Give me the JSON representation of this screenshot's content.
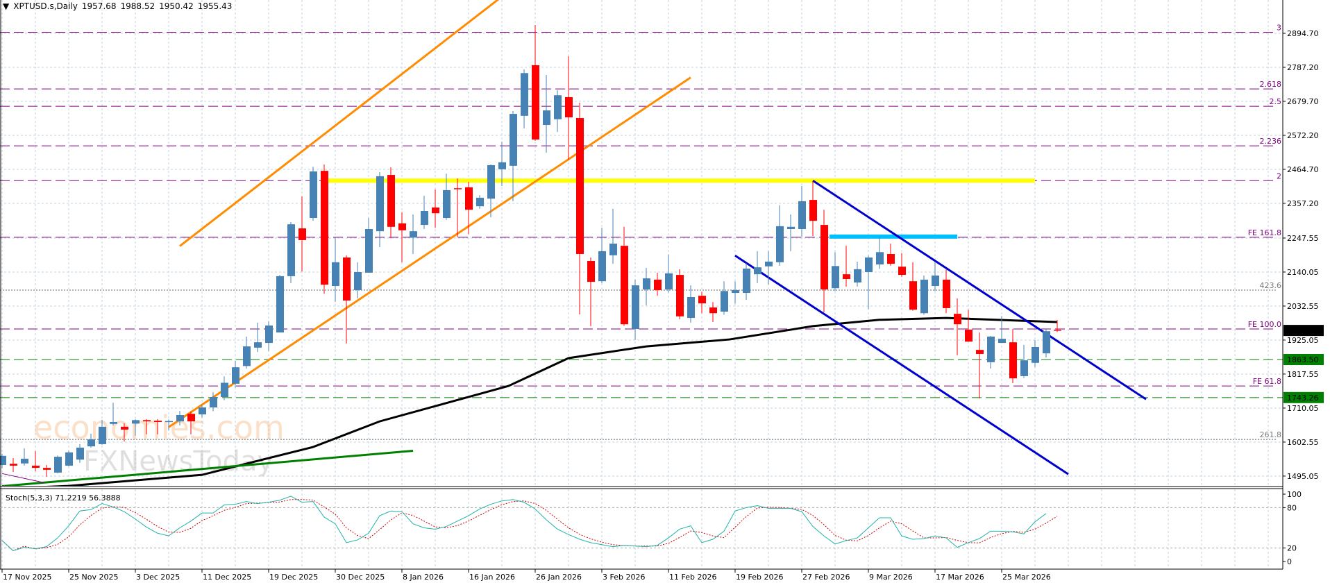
{
  "header": {
    "arrow_icon": "triangle-down-icon",
    "symbol": "XPTUSD.s,Daily",
    "open": "1957.68",
    "high": "1988.52",
    "low": "1950.42",
    "close": "1955.43"
  },
  "watermark": {
    "line1": "economies.com",
    "line2": "FXNewsToday"
  },
  "colors": {
    "bull": "#4682B4",
    "bear": "#FF0000",
    "grid": "#c0d4dc",
    "fib": "#800080",
    "support": "#008000",
    "ma": "#000000",
    "channel_up": "#FF8C00",
    "channel_down": "#0000CC",
    "resistance_yellow": "#FFFF00",
    "resistance_cyan": "#00BFFF",
    "stoch_main": "#20B2AA",
    "stoch_signal": "#CC0000"
  },
  "chart_data": {
    "type": "candlestick",
    "price_axis_labels": [
      "2894.70",
      "2787.20",
      "2679.70",
      "2572.20",
      "2464.70",
      "2357.20",
      "2247.55",
      "2140.05",
      "2032.55",
      "1925.05",
      "1817.55",
      "1710.05",
      "1602.55",
      "1495.05"
    ],
    "date_labels": [
      "17 Nov 2025",
      "25 Nov 2025",
      "3 Dec 2025",
      "11 Dec 2025",
      "19 Dec 2025",
      "30 Dec 2025",
      "8 Jan 2026",
      "16 Jan 2026",
      "26 Jan 2026",
      "3 Feb 2026",
      "11 Feb 2026",
      "19 Feb 2026",
      "27 Feb 2026",
      "9 Mar 2026",
      "17 Mar 2026",
      "25 Mar 2026"
    ],
    "ylim": [
      1450,
      2960
    ],
    "ohlc": [
      [
        1530,
        1565,
        1520,
        1559
      ],
      [
        1534,
        1552,
        1508,
        1528
      ],
      [
        1535,
        1583,
        1528,
        1550
      ],
      [
        1528,
        1574,
        1510,
        1521
      ],
      [
        1521,
        1530,
        1493,
        1515
      ],
      [
        1506,
        1560,
        1504,
        1556
      ],
      [
        1528,
        1575,
        1526,
        1570
      ],
      [
        1547,
        1596,
        1537,
        1585
      ],
      [
        1589,
        1629,
        1585,
        1611
      ],
      [
        1596,
        1673,
        1594,
        1651
      ],
      [
        1660,
        1727,
        1655,
        1666
      ],
      [
        1651,
        1662,
        1604,
        1642
      ],
      [
        1661,
        1675,
        1622,
        1672
      ],
      [
        1672,
        1675,
        1627,
        1668
      ],
      [
        1670,
        1675,
        1627,
        1666
      ],
      [
        1668,
        1674,
        1640,
        1669
      ],
      [
        1668,
        1701,
        1655,
        1688
      ],
      [
        1692,
        1699,
        1627,
        1668
      ],
      [
        1690,
        1720,
        1680,
        1712
      ],
      [
        1712,
        1760,
        1700,
        1745
      ],
      [
        1745,
        1810,
        1735,
        1790
      ],
      [
        1787,
        1860,
        1775,
        1839
      ],
      [
        1843,
        1936,
        1835,
        1905
      ],
      [
        1901,
        1980,
        1887,
        1918
      ],
      [
        1916,
        1984,
        1890,
        1971
      ],
      [
        1949,
        2131,
        1949,
        2127
      ],
      [
        2127,
        2298,
        2105,
        2291
      ],
      [
        2278,
        2379,
        2142,
        2241
      ],
      [
        2311,
        2473,
        2302,
        2458
      ],
      [
        2460,
        2480,
        2072,
        2100
      ],
      [
        2096,
        2250,
        2046,
        2171
      ],
      [
        2186,
        2193,
        1914,
        2050
      ],
      [
        2083,
        2171,
        2057,
        2140
      ],
      [
        2138,
        2311,
        2138,
        2276
      ],
      [
        2269,
        2456,
        2219,
        2443
      ],
      [
        2447,
        2471,
        2247,
        2283
      ],
      [
        2294,
        2329,
        2171,
        2272
      ],
      [
        2249,
        2322,
        2197,
        2269
      ],
      [
        2289,
        2381,
        2276,
        2333
      ],
      [
        2344,
        2401,
        2280,
        2326
      ],
      [
        2311,
        2451,
        2305,
        2399
      ],
      [
        2405,
        2436,
        2250,
        2403
      ],
      [
        2408,
        2425,
        2260,
        2337
      ],
      [
        2348,
        2383,
        2340,
        2375
      ],
      [
        2372,
        2480,
        2313,
        2478
      ],
      [
        2465,
        2552,
        2412,
        2487
      ],
      [
        2476,
        2649,
        2364,
        2640
      ],
      [
        2634,
        2781,
        2594,
        2769
      ],
      [
        2794,
        2921,
        2555,
        2559
      ],
      [
        2605,
        2763,
        2517,
        2651
      ],
      [
        2623,
        2715,
        2583,
        2699
      ],
      [
        2693,
        2822,
        2495,
        2629
      ],
      [
        2627,
        2675,
        2006,
        2197
      ],
      [
        2175,
        2186,
        1969,
        2109
      ],
      [
        2111,
        2280,
        2105,
        2206
      ],
      [
        2193,
        2340,
        2166,
        2230
      ],
      [
        2223,
        2283,
        1970,
        1975
      ],
      [
        1960,
        2116,
        1925,
        2098
      ],
      [
        2085,
        2153,
        2035,
        2120
      ],
      [
        2116,
        2138,
        2065,
        2083
      ],
      [
        2085,
        2195,
        2075,
        2136
      ],
      [
        2131,
        2149,
        1991,
        2000
      ],
      [
        1995,
        2098,
        1980,
        2061
      ],
      [
        2065,
        2078,
        2010,
        2041
      ],
      [
        2028,
        2045,
        1982,
        2010
      ],
      [
        2015,
        2111,
        2005,
        2080
      ],
      [
        2074,
        2111,
        2040,
        2083
      ],
      [
        2074,
        2168,
        2052,
        2151
      ],
      [
        2133,
        2206,
        2105,
        2155
      ],
      [
        2158,
        2206,
        2100,
        2173
      ],
      [
        2171,
        2351,
        2160,
        2285
      ],
      [
        2276,
        2322,
        2206,
        2283
      ],
      [
        2276,
        2412,
        2250,
        2364
      ],
      [
        2368,
        2429,
        2254,
        2302
      ],
      [
        2289,
        2337,
        2013,
        2085
      ],
      [
        2089,
        2203,
        2080,
        2159
      ],
      [
        2133,
        2223,
        2094,
        2118
      ],
      [
        2107,
        2173,
        2094,
        2149
      ],
      [
        2140,
        2192,
        2023,
        2186
      ],
      [
        2164,
        2250,
        2150,
        2203
      ],
      [
        2197,
        2230,
        2160,
        2166
      ],
      [
        2157,
        2200,
        2125,
        2131
      ],
      [
        2111,
        2171,
        2018,
        2021
      ],
      [
        2010,
        2129,
        2005,
        2116
      ],
      [
        2096,
        2173,
        2080,
        2129
      ],
      [
        2116,
        2148,
        2010,
        2026
      ],
      [
        2008,
        2057,
        1877,
        1975
      ],
      [
        1958,
        2021,
        1920,
        1920
      ],
      [
        1894,
        1949,
        1741,
        1881
      ],
      [
        1855,
        1938,
        1835,
        1936
      ],
      [
        1916,
        2001,
        1916,
        1929
      ],
      [
        1918,
        1960,
        1789,
        1804
      ],
      [
        1811,
        1910,
        1805,
        1861
      ],
      [
        1853,
        1925,
        1840,
        1903
      ],
      [
        1883,
        1960,
        1870,
        1953
      ],
      [
        1957.68,
        1988.52,
        1950.42,
        1955.43
      ]
    ],
    "moving_average": [
      [
        0,
        1455
      ],
      [
        6,
        1464
      ],
      [
        18,
        1499
      ],
      [
        28,
        1587
      ],
      [
        34,
        1668
      ],
      [
        45.6,
        1780
      ],
      [
        51,
        1868
      ],
      [
        58,
        1905
      ],
      [
        65.5,
        1927
      ],
      [
        73,
        1969
      ],
      [
        79,
        1989
      ],
      [
        85,
        1995
      ],
      [
        95,
        1982
      ]
    ],
    "fib_levels": [
      {
        "label": "3",
        "price": 2898,
        "style": "dash"
      },
      {
        "label": "2.618",
        "price": 2719,
        "style": "dash"
      },
      {
        "label": "2.5",
        "price": 2664,
        "style": "dash"
      },
      {
        "label": "2.236",
        "price": 2539,
        "style": "dash"
      },
      {
        "label": "2",
        "price": 2429,
        "style": "dash"
      },
      {
        "label": "FE 161.8",
        "price": 2250,
        "style": "dash"
      },
      {
        "label": "423.6",
        "price": 2083,
        "style": "dot"
      },
      {
        "label": "FE 100.0",
        "price": 1960,
        "style": "dash"
      },
      {
        "label": "FE 61.8",
        "price": 1780,
        "style": "dash"
      },
      {
        "label": "261.8",
        "price": 1611,
        "style": "dot"
      }
    ],
    "support_levels": [
      {
        "label": "1863.50",
        "price": 1863.5
      },
      {
        "label": "1743.26",
        "price": 1743.26
      }
    ],
    "current_price_label": "1955.43",
    "trendlines": [
      {
        "name": "ascending-channel-upper",
        "color": "channel_up",
        "from": [
          16,
          2222
        ],
        "to": [
          46,
          3038
        ]
      },
      {
        "name": "ascending-channel-lower",
        "color": "channel_up",
        "from": [
          15,
          1650
        ],
        "to": [
          62,
          2755
        ]
      },
      {
        "name": "descending-channel-upper",
        "color": "channel_down",
        "from": [
          73,
          2429
        ],
        "to": [
          103,
          1738
        ]
      },
      {
        "name": "descending-channel-lower",
        "color": "channel_down",
        "from": [
          66,
          2192
        ],
        "to": [
          96,
          1501
        ]
      },
      {
        "name": "long-term-support",
        "color": "support",
        "from": [
          0,
          1463
        ],
        "to": [
          37,
          1575
        ]
      },
      {
        "name": "short-purple-line",
        "color": "fib",
        "from": [
          0,
          1503
        ],
        "to": [
          3.8,
          1474
        ]
      }
    ],
    "zones": [
      {
        "name": "resistance-yellow",
        "color": "resistance_yellow",
        "from_bar": 29,
        "to_bar": 93,
        "price": 2429
      },
      {
        "name": "resistance-cyan",
        "color": "resistance_cyan",
        "from_bar": 74.5,
        "to_bar": 86,
        "price": 2252
      }
    ],
    "stochastic": {
      "label": "Stoch(5,3,3) 71.2219 56.3888",
      "axis_labels": [
        "100",
        "80",
        "20",
        "0"
      ],
      "levels": [
        80,
        20
      ],
      "k": [
        31,
        16,
        21,
        19,
        22,
        35,
        53,
        75,
        77,
        86,
        81,
        74,
        63,
        51,
        42,
        38,
        50,
        60,
        72,
        72,
        84,
        85,
        89,
        86,
        88,
        91,
        97,
        88,
        89,
        66,
        56,
        28,
        32,
        42,
        68,
        75,
        74,
        56,
        50,
        48,
        52,
        60,
        68,
        78,
        85,
        90,
        92,
        88,
        78,
        62,
        48,
        40,
        33,
        28,
        25,
        22,
        24,
        23,
        22,
        24,
        35,
        48,
        53,
        28,
        33,
        45,
        75,
        80,
        83,
        79,
        79,
        79,
        74,
        52,
        38,
        26,
        31,
        35,
        50,
        65,
        65,
        38,
        33,
        34,
        38,
        35,
        21,
        28,
        34,
        45,
        45,
        44,
        41,
        59,
        71.22,
        71.22
      ]
    }
  }
}
